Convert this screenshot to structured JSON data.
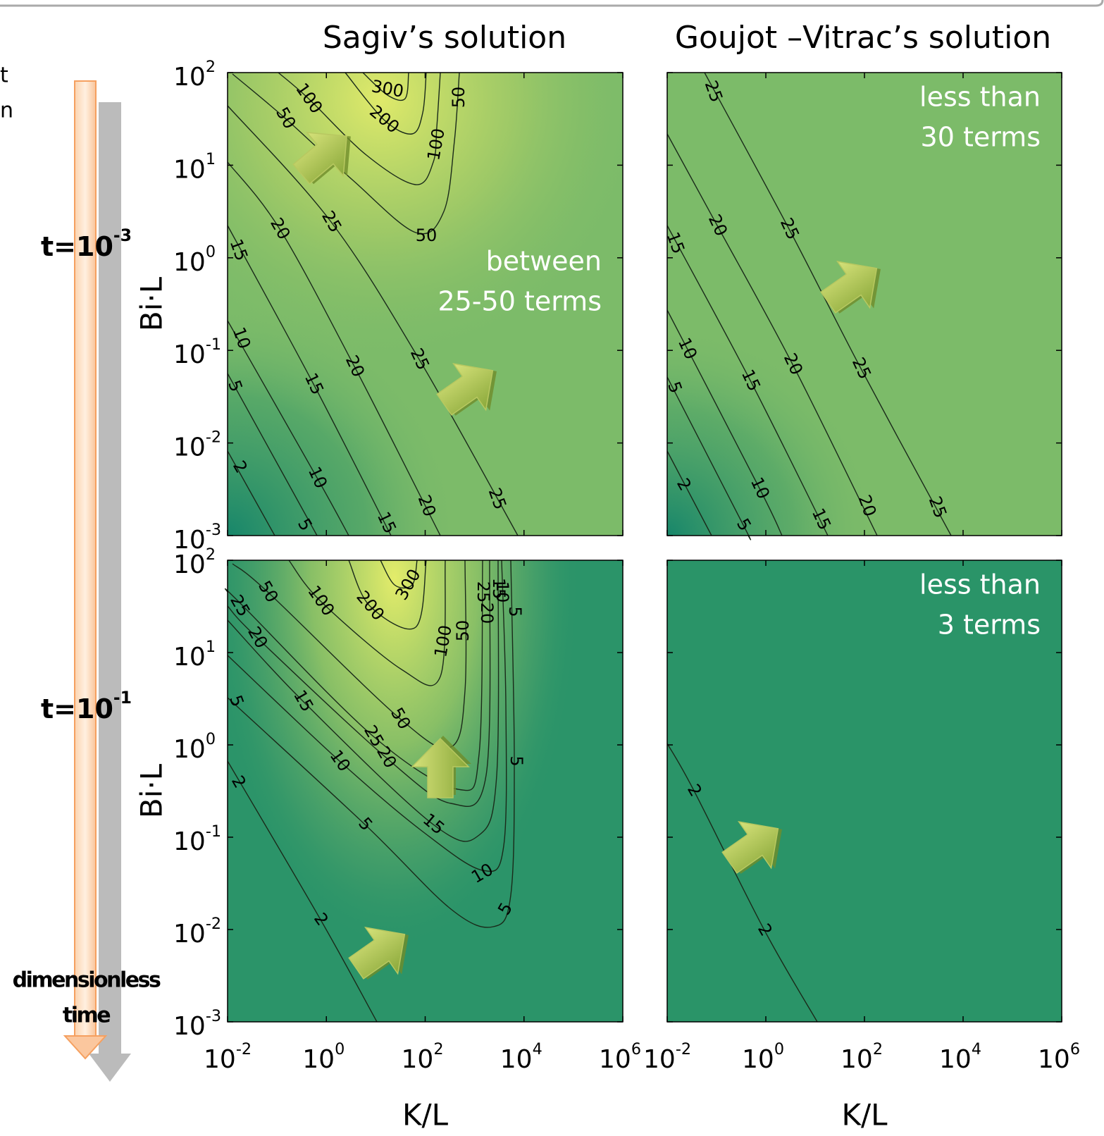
{
  "figure": {
    "left_fragments": [
      "t",
      "n"
    ],
    "columns": [
      "Sagiv’s solution",
      "Goujot –Vitrac’s solution"
    ],
    "row_labels": [
      {
        "base": "t=10",
        "exp": "-3"
      },
      {
        "base": "t=10",
        "exp": "-1"
      }
    ],
    "time_caption": [
      "dimensionless",
      "time"
    ],
    "y_label": "Bi·L",
    "x_label": "K/L",
    "y_ticks": [
      {
        "base": "10",
        "exp": "2"
      },
      {
        "base": "10",
        "exp": "1"
      },
      {
        "base": "10",
        "exp": "0"
      },
      {
        "base": "10",
        "exp": "-1"
      },
      {
        "base": "10",
        "exp": "-2"
      },
      {
        "base": "10",
        "exp": "-3"
      }
    ],
    "x_ticks": [
      {
        "base": "10",
        "exp": "-2"
      },
      {
        "base": "10",
        "exp": "0"
      },
      {
        "base": "10",
        "exp": "2"
      },
      {
        "base": "10",
        "exp": "4"
      },
      {
        "base": "10",
        "exp": "6"
      }
    ],
    "panels": [
      {
        "annotation": [
          "between",
          "25-50 terms"
        ],
        "contour_labels": [
          "100",
          "300",
          "50",
          "50",
          "200",
          "100",
          "25",
          "20",
          "50",
          "15",
          "10",
          "20",
          "25",
          "15",
          "5",
          "2",
          "10",
          "20",
          "25",
          "5",
          "15"
        ]
      },
      {
        "annotation": [
          "less than",
          "30 terms"
        ],
        "contour_labels": [
          "25",
          "20",
          "25",
          "15",
          "10",
          "20",
          "25",
          "15",
          "5",
          "2",
          "10",
          "20",
          "25",
          "5",
          "15"
        ]
      },
      {
        "contour_labels": [
          "50",
          "100",
          "200",
          "300",
          "25",
          "20",
          "100",
          "50",
          "15",
          "5",
          "50",
          "25",
          "20",
          "10",
          "25",
          "20",
          "15",
          "10",
          "5",
          "5",
          "2",
          "5",
          "15",
          "10",
          "5",
          "2"
        ]
      },
      {
        "annotation": [
          "less than",
          "3 terms"
        ],
        "contour_labels": [
          "2",
          "2"
        ]
      }
    ]
  }
}
